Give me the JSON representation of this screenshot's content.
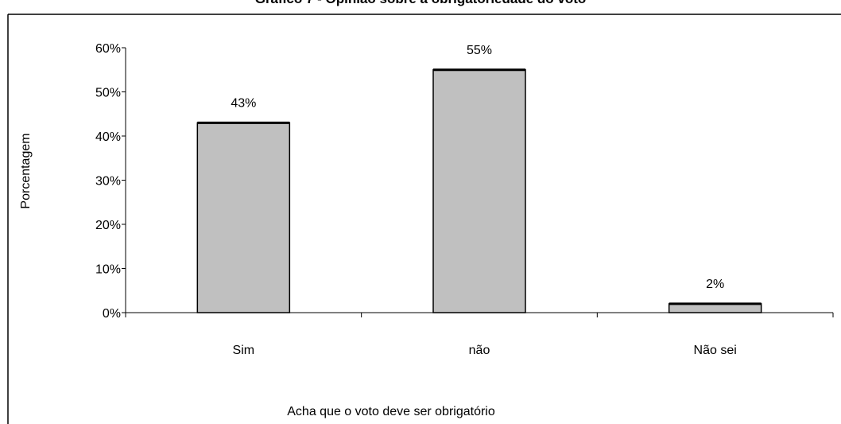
{
  "chart_data": {
    "type": "bar",
    "title": "Gráfico 7 - Opinião sobre a obrigatoriedade do voto",
    "xlabel": "Acha que o voto deve ser obrigatório",
    "ylabel": "Porcentagem",
    "categories": [
      "Sim",
      "não",
      "Não sei"
    ],
    "values": [
      43,
      55,
      2
    ],
    "data_labels": [
      "43%",
      "55%",
      "2%"
    ],
    "yticks": [
      "0%",
      "10%",
      "20%",
      "30%",
      "40%",
      "50%",
      "60%"
    ],
    "ylim": [
      0,
      60
    ],
    "bar_color": "#c0c0c0",
    "grid": false,
    "legend": "none"
  }
}
